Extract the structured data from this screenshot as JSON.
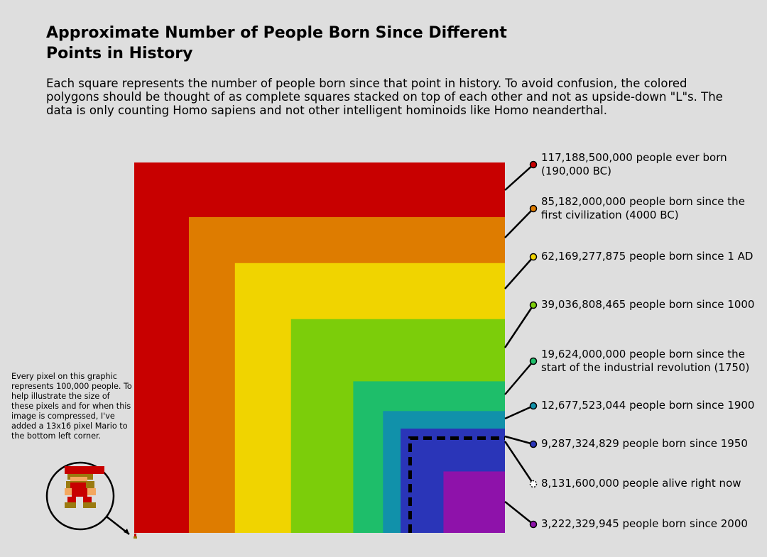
{
  "chart_data": {
    "type": "nested-squares",
    "title": "Approximate Number of People Born Since Different Points in History",
    "subtitle": "Each square represents the number of people born since that point in history. To avoid confusion, the colored polygons should be thought of as complete squares stacked on top of each other and not as upside-down \"L\"s. The data is only counting Homo sapiens and not other intelligent hominoids like Homo neanderthal.",
    "annotation": "Every pixel on this graphic represents 100,000 people. To help illustrate the size of these pixels and for when this image is compressed, I've added a 13x16 pixel Mario to the bottom left corner.",
    "series": [
      {
        "name": "people ever born (190,000 BC)",
        "value": 117188500000,
        "value_label": "117,188,500,000",
        "color": "#c80000"
      },
      {
        "name": "people born since the first civilization (4000 BC)",
        "value": 85182000000,
        "value_label": "85,182,000,000",
        "color": "#de7c00"
      },
      {
        "name": "people born since 1 AD",
        "value": 62169277875,
        "value_label": "62,169,277,875",
        "color": "#f0d400"
      },
      {
        "name": "people born since 1000",
        "value": 39036808465,
        "value_label": "39,036,808,465",
        "color": "#7ccd0a"
      },
      {
        "name": "people born since the start of the industrial revolution (1750)",
        "value": 19624000000,
        "value_label": "19,624,000,000",
        "color": "#1ebe6a"
      },
      {
        "name": "people born since 1900",
        "value": 12677523044,
        "value_label": "12,677,523,044",
        "color": "#1191aa"
      },
      {
        "name": "people born since 1950",
        "value": 9287324829,
        "value_label": "9,287,324,829",
        "color": "#2a35b8"
      },
      {
        "name": "people alive right now",
        "value": 8131600000,
        "value_label": "8,131,600,000",
        "line_style": "dashed",
        "line_color": "#000000"
      },
      {
        "name": "people born since 2000",
        "value": 3222329945,
        "value_label": "3,222,329,945",
        "color": "#8e12aa"
      }
    ]
  }
}
